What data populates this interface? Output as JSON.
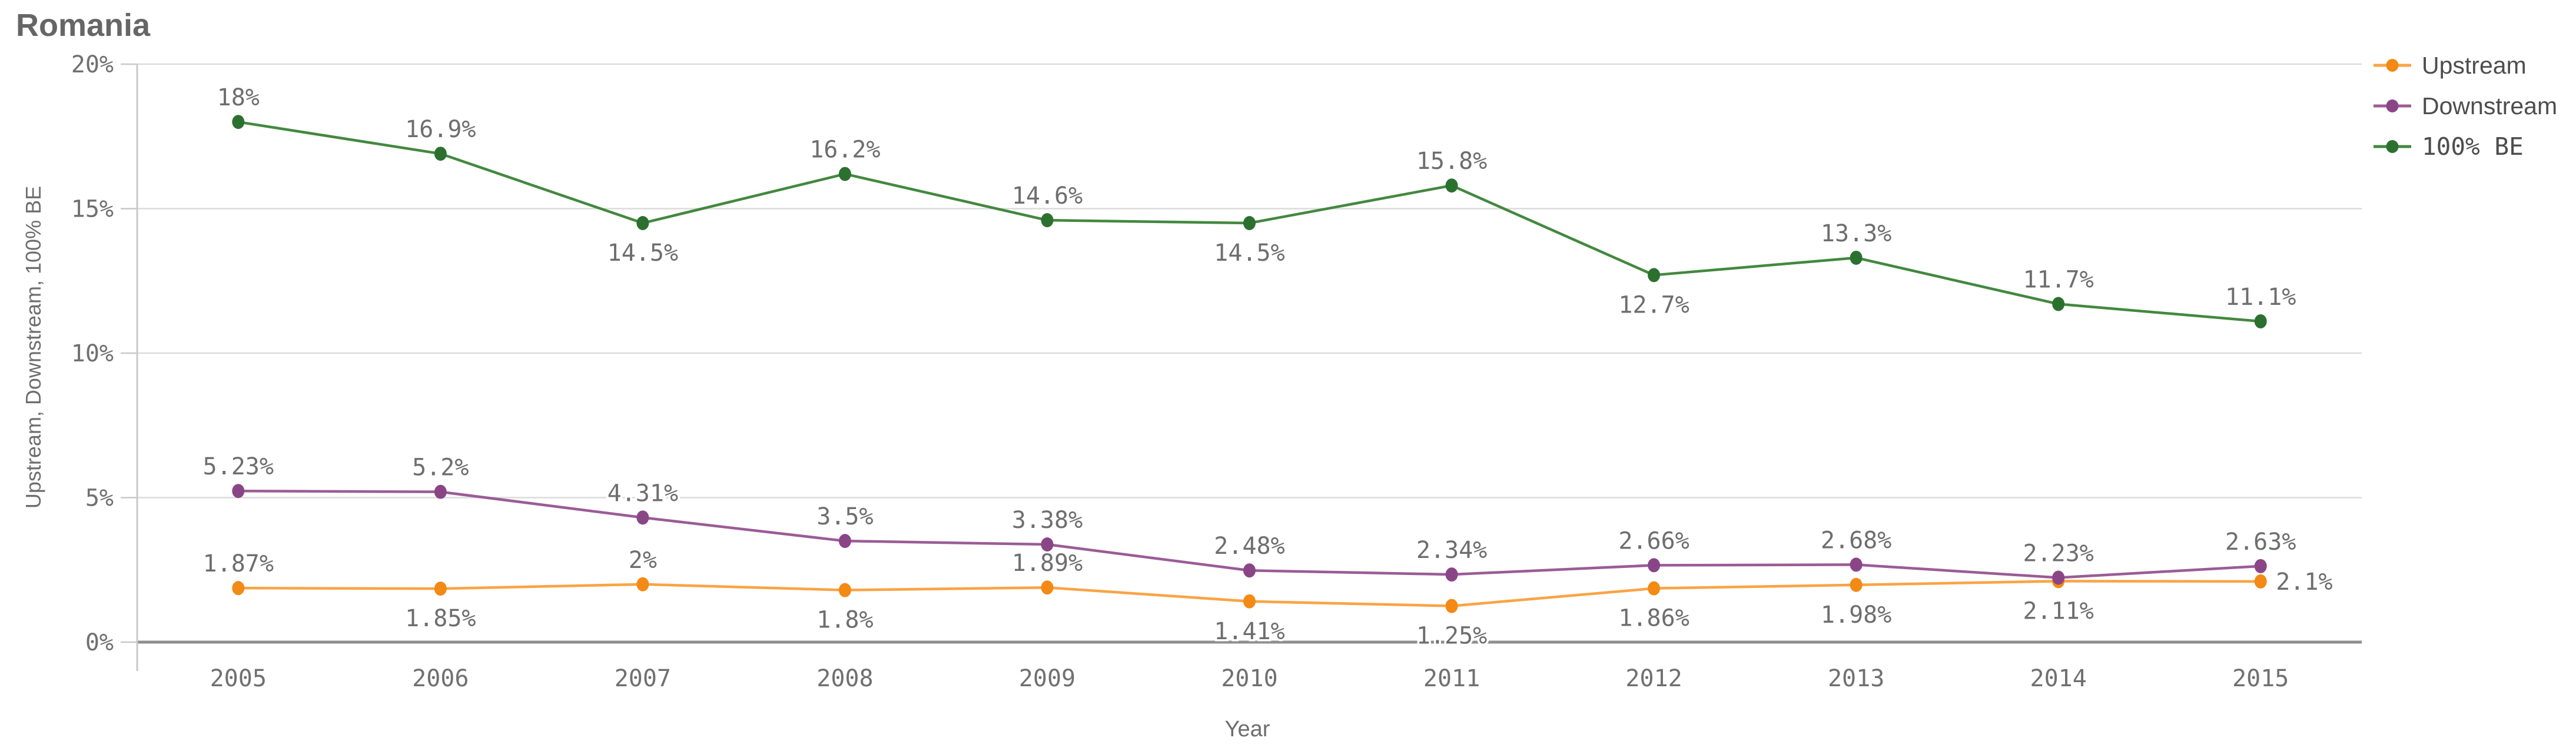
{
  "title": "Romania",
  "colors": {
    "upstream_dot": "#f28a15",
    "upstream_line": "#f9a445",
    "downstream_dot": "#8a4587",
    "downstream_line": "#9a5c96",
    "be_dot": "#2c7030",
    "be_line": "#43883f",
    "grid": "#dcdcdc",
    "zero_axis": "#8f8f8f",
    "axis": "#c9c9c9",
    "label_text": "#6e6e6e"
  },
  "legend": {
    "items": [
      {
        "label": "Upstream",
        "dot": "#f28a15",
        "line": "#f9a445"
      },
      {
        "label": "Downstream",
        "dot": "#8a4587",
        "line": "#9a5c96"
      },
      {
        "label": "100% BE",
        "dot": "#2c7030",
        "line": "#43883f"
      }
    ]
  },
  "chart_data": {
    "type": "line",
    "title": "Romania",
    "xlabel": "Year",
    "ylabel": "Upstream, Downstream, 100% BE",
    "x": [
      "2005",
      "2006",
      "2007",
      "2008",
      "2009",
      "2010",
      "2011",
      "2012",
      "2013",
      "2014",
      "2015"
    ],
    "y_ticks": [
      "0%",
      "5%",
      "10%",
      "15%",
      "20%"
    ],
    "ylim": [
      0,
      20
    ],
    "grid": true,
    "legend_position": "top-right",
    "series": [
      {
        "name": "Upstream",
        "dot_color": "#f28a15",
        "line_color": "#f9a445",
        "values": [
          1.87,
          1.85,
          2,
          1.8,
          1.89,
          1.41,
          1.25,
          1.86,
          1.98,
          2.11,
          2.1
        ],
        "labels": [
          "1.87%",
          "1.85%",
          "2%",
          "1.8%",
          "1.89%",
          "1.41%",
          "1.25%",
          "1.86%",
          "1.98%",
          "2.11%",
          "2.1%"
        ],
        "label_pos": [
          "above",
          "below",
          "above",
          "below",
          "above",
          "below",
          "below",
          "below",
          "below",
          "below",
          "right"
        ]
      },
      {
        "name": "Downstream",
        "dot_color": "#8a4587",
        "line_color": "#9a5c96",
        "values": [
          5.23,
          5.2,
          4.31,
          3.5,
          3.38,
          2.48,
          2.34,
          2.66,
          2.68,
          2.23,
          2.63
        ],
        "labels": [
          "5.23%",
          "5.2%",
          "4.31%",
          "3.5%",
          "3.38%",
          "2.48%",
          "2.34%",
          "2.66%",
          "2.68%",
          "2.23%",
          "2.63%"
        ],
        "label_pos": [
          "above",
          "above",
          "above",
          "above",
          "above",
          "above",
          "above",
          "above",
          "above",
          "above",
          "above"
        ]
      },
      {
        "name": "100% BE",
        "dot_color": "#2c7030",
        "line_color": "#43883f",
        "values": [
          18,
          16.9,
          14.5,
          16.2,
          14.6,
          14.5,
          15.8,
          12.7,
          13.3,
          11.7,
          11.1
        ],
        "labels": [
          "18%",
          "16.9%",
          "14.5%",
          "16.2%",
          "14.6%",
          "14.5%",
          "15.8%",
          "12.7%",
          "13.3%",
          "11.7%",
          "11.1%"
        ],
        "label_pos": [
          "above",
          "above",
          "below",
          "above",
          "above",
          "below",
          "above",
          "below",
          "above",
          "above",
          "above"
        ]
      }
    ]
  }
}
